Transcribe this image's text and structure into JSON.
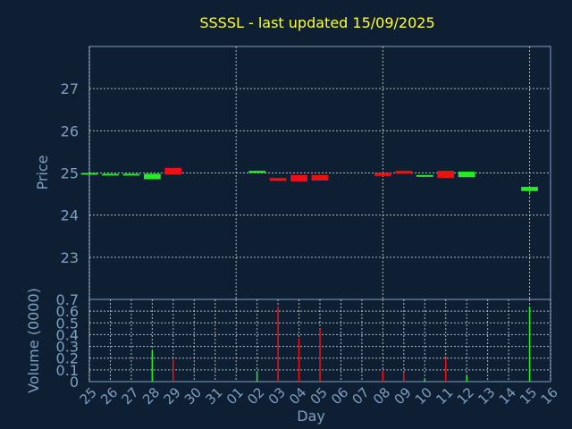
{
  "chart_data": [
    {
      "type": "candlestick",
      "title": "SSSSL - last updated 15/09/2025",
      "xlabel": "",
      "ylabel": "Price",
      "ylim": [
        22.0,
        28.0
      ],
      "yticks": [
        23,
        24,
        25,
        26,
        27
      ],
      "grid": true,
      "colors": {
        "up": "#22ee22",
        "down": "#ee1111",
        "background": "#0f1f33",
        "axis": "#7f9fbf",
        "grid": "#d8dde2",
        "title": "#ffff33"
      },
      "series": [
        {
          "x": "2025-08-25",
          "open": 24.97,
          "close": 25.0,
          "high": 25.0,
          "low": 24.97
        },
        {
          "x": "2025-08-26",
          "open": 24.96,
          "close": 24.98,
          "high": 24.98,
          "low": 24.96
        },
        {
          "x": "2025-08-27",
          "open": 24.95,
          "close": 24.98,
          "high": 24.98,
          "low": 24.95
        },
        {
          "x": "2025-08-28",
          "open": 24.85,
          "close": 24.98,
          "high": 24.98,
          "low": 24.85
        },
        {
          "x": "2025-08-29",
          "open": 25.12,
          "close": 24.96,
          "high": 25.12,
          "low": 24.96
        },
        {
          "x": "2025-09-02",
          "open": 25.0,
          "close": 25.05,
          "high": 25.05,
          "low": 25.0
        },
        {
          "x": "2025-09-03",
          "open": 24.88,
          "close": 24.81,
          "high": 24.88,
          "low": 24.81
        },
        {
          "x": "2025-09-04",
          "open": 24.95,
          "close": 24.8,
          "high": 24.95,
          "low": 24.8
        },
        {
          "x": "2025-09-05",
          "open": 24.95,
          "close": 24.82,
          "high": 24.95,
          "low": 24.82
        },
        {
          "x": "2025-09-08",
          "open": 25.0,
          "close": 24.93,
          "high": 25.0,
          "low": 24.93
        },
        {
          "x": "2025-09-09",
          "open": 25.05,
          "close": 24.98,
          "high": 25.05,
          "low": 24.98
        },
        {
          "x": "2025-09-10",
          "open": 24.92,
          "close": 24.95,
          "high": 24.95,
          "low": 24.92
        },
        {
          "x": "2025-09-11",
          "open": 25.05,
          "close": 24.88,
          "high": 25.05,
          "low": 24.88
        },
        {
          "x": "2025-09-12",
          "open": 24.9,
          "close": 25.03,
          "high": 25.03,
          "low": 24.9
        },
        {
          "x": "2025-09-15",
          "open": 24.57,
          "close": 24.67,
          "high": 24.67,
          "low": 24.5
        }
      ]
    },
    {
      "type": "bar",
      "xlabel": "Day",
      "ylabel": "Volume (0000)",
      "ylim": [
        0,
        0.7
      ],
      "yticks": [
        0,
        0.1,
        0.2,
        0.3,
        0.4,
        0.5,
        0.6,
        0.7
      ],
      "yticklabels": [
        "0",
        "0.1",
        "0.2",
        "0.3",
        "0.4",
        "0.5",
        "0.6",
        "0.7"
      ],
      "xlim": [
        "2025-08-25",
        "2025-09-16"
      ],
      "xticklabels": [
        "25",
        "26",
        "27",
        "28",
        "29",
        "30",
        "31",
        "01",
        "02",
        "03",
        "04",
        "05",
        "06",
        "07",
        "08",
        "09",
        "10",
        "11",
        "12",
        "13",
        "14",
        "15",
        "16"
      ],
      "x": [
        "2025-08-25",
        "2025-08-26",
        "2025-08-27",
        "2025-08-28",
        "2025-08-29",
        "2025-09-02",
        "2025-09-03",
        "2025-09-04",
        "2025-09-05",
        "2025-09-08",
        "2025-09-09",
        "2025-09-10",
        "2025-09-11",
        "2025-09-12",
        "2025-09-15"
      ],
      "values": [
        0.005,
        0.005,
        0.005,
        0.26,
        0.19,
        0.08,
        0.64,
        0.37,
        0.45,
        0.09,
        0.08,
        0.02,
        0.2,
        0.05,
        0.64
      ],
      "direction": [
        "up",
        "up",
        "up",
        "up",
        "down",
        "up",
        "down",
        "down",
        "down",
        "down",
        "down",
        "up",
        "down",
        "up",
        "up"
      ]
    }
  ]
}
